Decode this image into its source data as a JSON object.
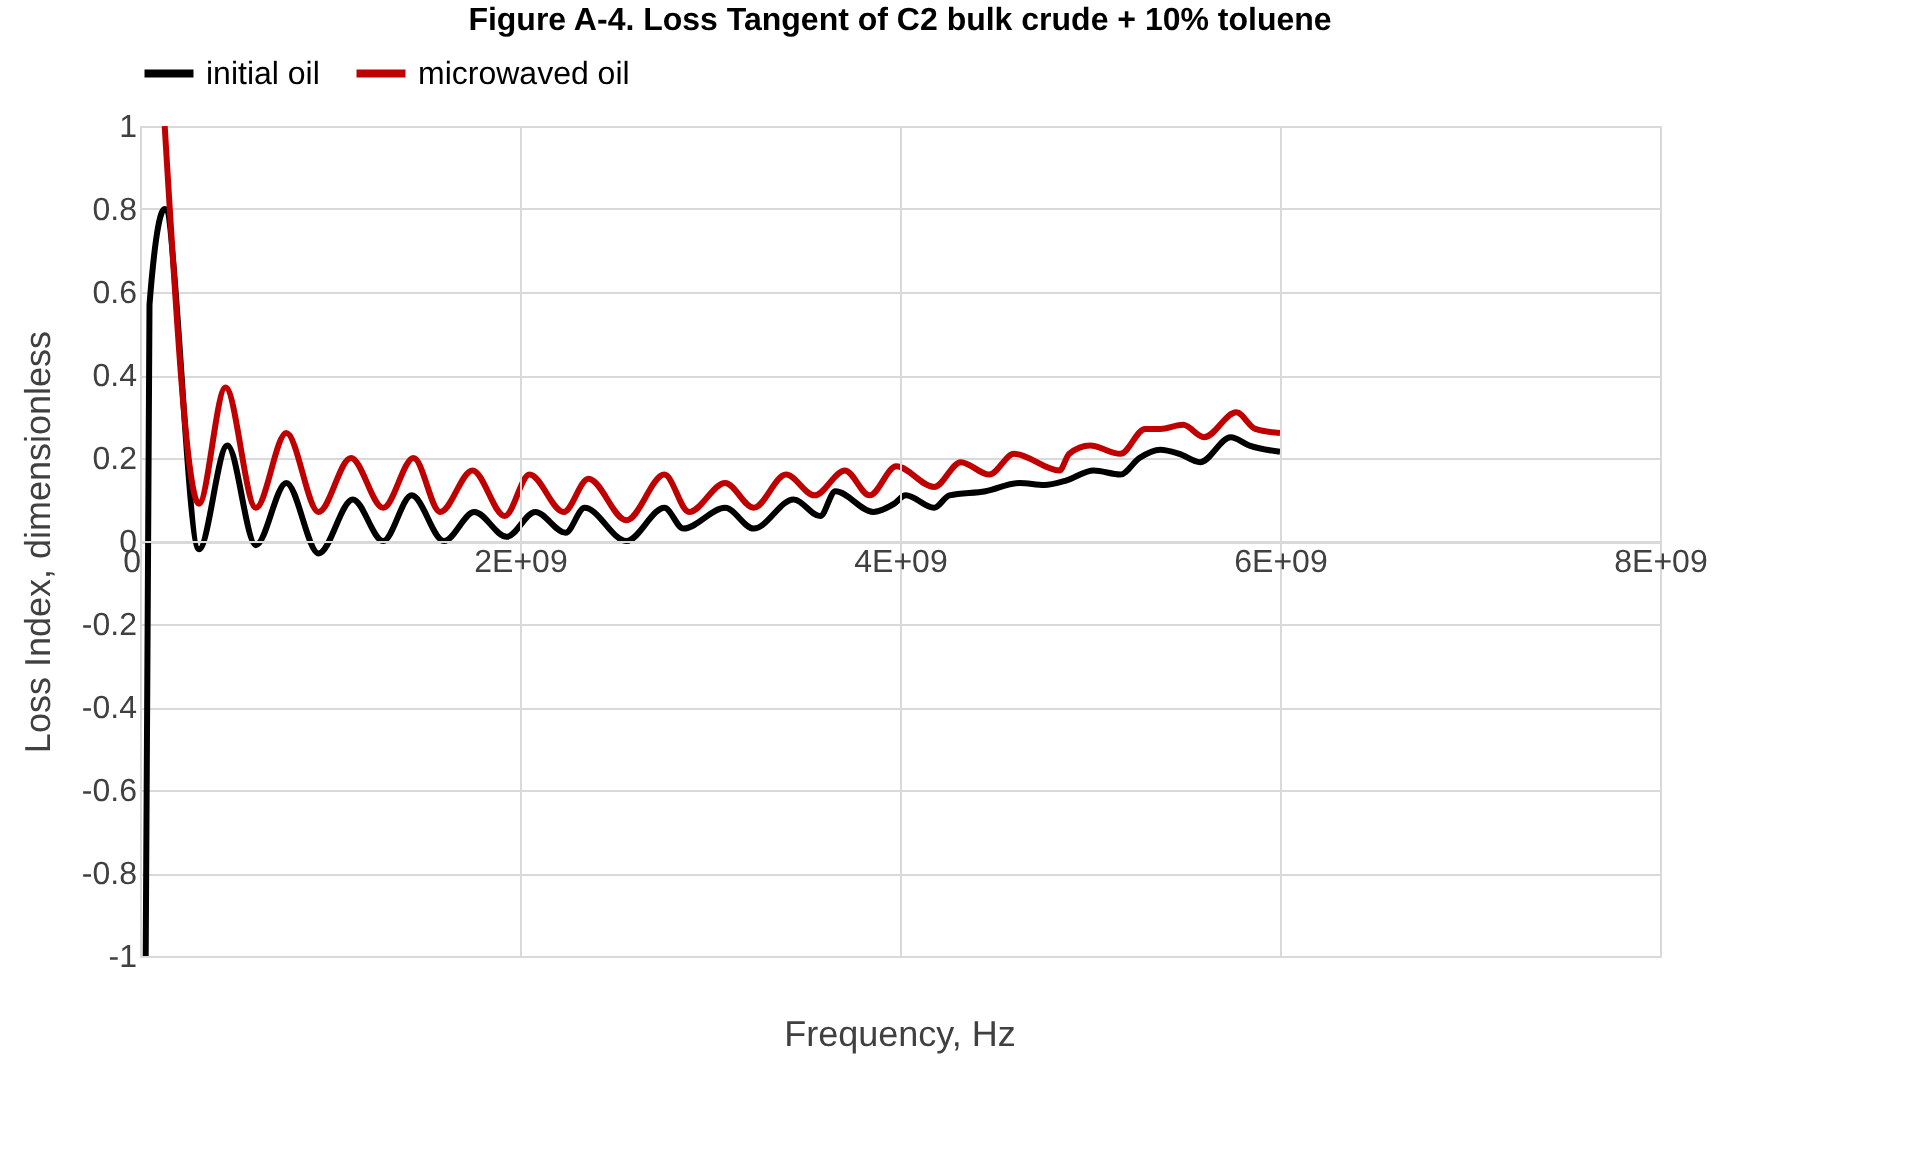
{
  "chart_data": {
    "type": "line",
    "title": "Figure A-4.     Loss Tangent of C2 bulk crude + 10% toluene",
    "xlabel": "Frequency, Hz",
    "ylabel": "Loss Index, dimensionless",
    "xlim": [
      0,
      8000000000
    ],
    "xticks": [
      0,
      {
        "value": 2000000000,
        "label": "2E+09"
      },
      {
        "value": 4000000000,
        "label": "4E+09"
      },
      {
        "value": 6000000000,
        "label": "6E+09"
      },
      {
        "value": 8000000000,
        "label": "8E+09"
      }
    ],
    "ylim": [
      -1,
      1
    ],
    "yticks": [
      -1,
      -0.8,
      -0.6,
      -0.4,
      -0.2,
      0,
      0.2,
      0.4,
      0.6,
      0.8,
      1
    ],
    "grid": true,
    "legend": "top",
    "line_style": "solid",
    "marker": "none",
    "series": [
      {
        "name": "initial oil",
        "color": "#000000",
        "x": [
          30000000,
          50000000,
          130000000,
          310000000,
          460000000,
          610000000,
          770000000,
          940000000,
          1120000000,
          1280000000,
          1430000000,
          1600000000,
          1760000000,
          1930000000,
          2080000000,
          2240000000,
          2340000000,
          2560000000,
          2760000000,
          2860000000,
          3080000000,
          3230000000,
          3440000000,
          3580000000,
          3660000000,
          3860000000,
          3970000000,
          4030000000,
          4180000000,
          4260000000,
          4450000000,
          4630000000,
          4760000000,
          4870000000,
          5020000000,
          5160000000,
          5260000000,
          5370000000,
          5470000000,
          5580000000,
          5740000000,
          5840000000,
          6000000000
        ],
        "values": [
          -1,
          0.57,
          0.8,
          -0.02,
          0.23,
          -0.01,
          0.14,
          -0.03,
          0.1,
          0,
          0.11,
          0,
          0.07,
          0.01,
          0.07,
          0.02,
          0.08,
          0,
          0.08,
          0.03,
          0.08,
          0.03,
          0.1,
          0.06,
          0.12,
          0.07,
          0.09,
          0.11,
          0.08,
          0.11,
          0.12,
          0.14,
          0.135,
          0.145,
          0.17,
          0.16,
          0.2,
          0.22,
          0.21,
          0.19,
          0.25,
          0.23,
          0.215
        ]
      },
      {
        "name": "microwaved oil",
        "color": "#c00000",
        "x": [
          130000000,
          310000000,
          450000000,
          610000000,
          770000000,
          940000000,
          1110000000,
          1280000000,
          1440000000,
          1580000000,
          1750000000,
          1920000000,
          2050000000,
          2230000000,
          2360000000,
          2560000000,
          2760000000,
          2890000000,
          3080000000,
          3230000000,
          3400000000,
          3550000000,
          3710000000,
          3840000000,
          3980000000,
          4180000000,
          4320000000,
          4470000000,
          4600000000,
          4840000000,
          4890000000,
          5000000000,
          5160000000,
          5290000000,
          5370000000,
          5490000000,
          5600000000,
          5770000000,
          5870000000,
          6000000000
        ],
        "values": [
          1,
          0.09,
          0.37,
          0.08,
          0.26,
          0.07,
          0.2,
          0.08,
          0.2,
          0.07,
          0.17,
          0.06,
          0.16,
          0.07,
          0.15,
          0.05,
          0.16,
          0.07,
          0.14,
          0.08,
          0.16,
          0.11,
          0.17,
          0.11,
          0.18,
          0.13,
          0.19,
          0.16,
          0.21,
          0.17,
          0.21,
          0.23,
          0.21,
          0.27,
          0.27,
          0.28,
          0.25,
          0.31,
          0.27,
          0.26
        ]
      }
    ]
  }
}
